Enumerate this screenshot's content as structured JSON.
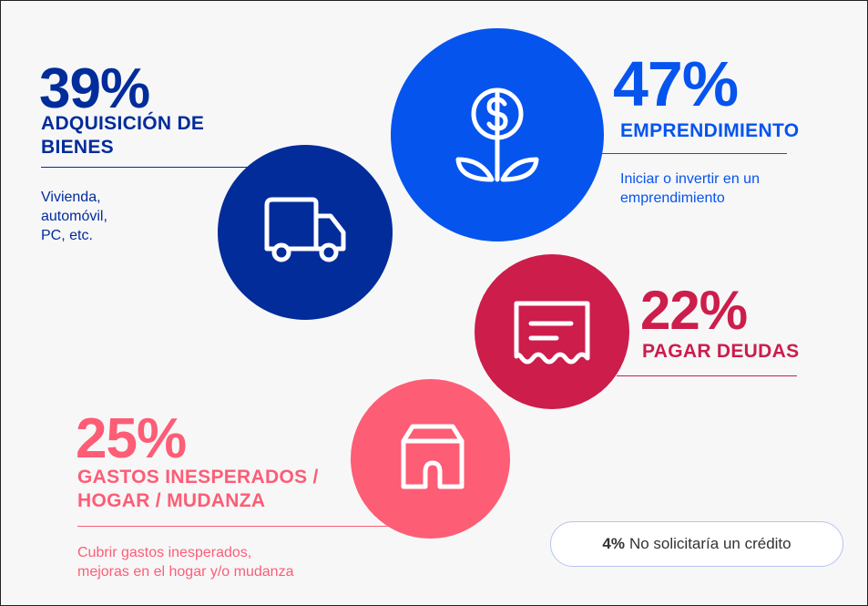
{
  "colors": {
    "navy": "#012c9a",
    "blue": "#0654ee",
    "crimson": "#cc1d4b",
    "pink": "#fd5d75",
    "background": "#f7f7f8"
  },
  "items": [
    {
      "percent": "39%",
      "title_line1": "ADQUISICIÓN DE",
      "title_line2": "BIENES",
      "desc_line1": "Vivienda,",
      "desc_line2": "automóvil,",
      "desc_line3": "PC, etc.",
      "icon": "truck-icon",
      "color": "#012c9a"
    },
    {
      "percent": "47%",
      "title_line1": "EMPRENDIMIENTO",
      "desc_line1": "Iniciar o invertir en un",
      "desc_line2": "emprendimiento",
      "icon": "money-plant-icon",
      "color": "#0654ee"
    },
    {
      "percent": "22%",
      "title_line1": "PAGAR DEUDAS",
      "icon": "receipt-icon",
      "color": "#cc1d4b"
    },
    {
      "percent": "25%",
      "title_line1": "GASTOS INESPERADOS /",
      "title_line2": "HOGAR / MUDANZA",
      "desc_line1": "Cubrir gastos inesperados,",
      "desc_line2": "mejoras en el hogar y/o mudanza",
      "icon": "house-icon",
      "color": "#fd5d75"
    }
  ],
  "footer": {
    "percent": "4%",
    "text": "No solicitaría un crédito"
  }
}
